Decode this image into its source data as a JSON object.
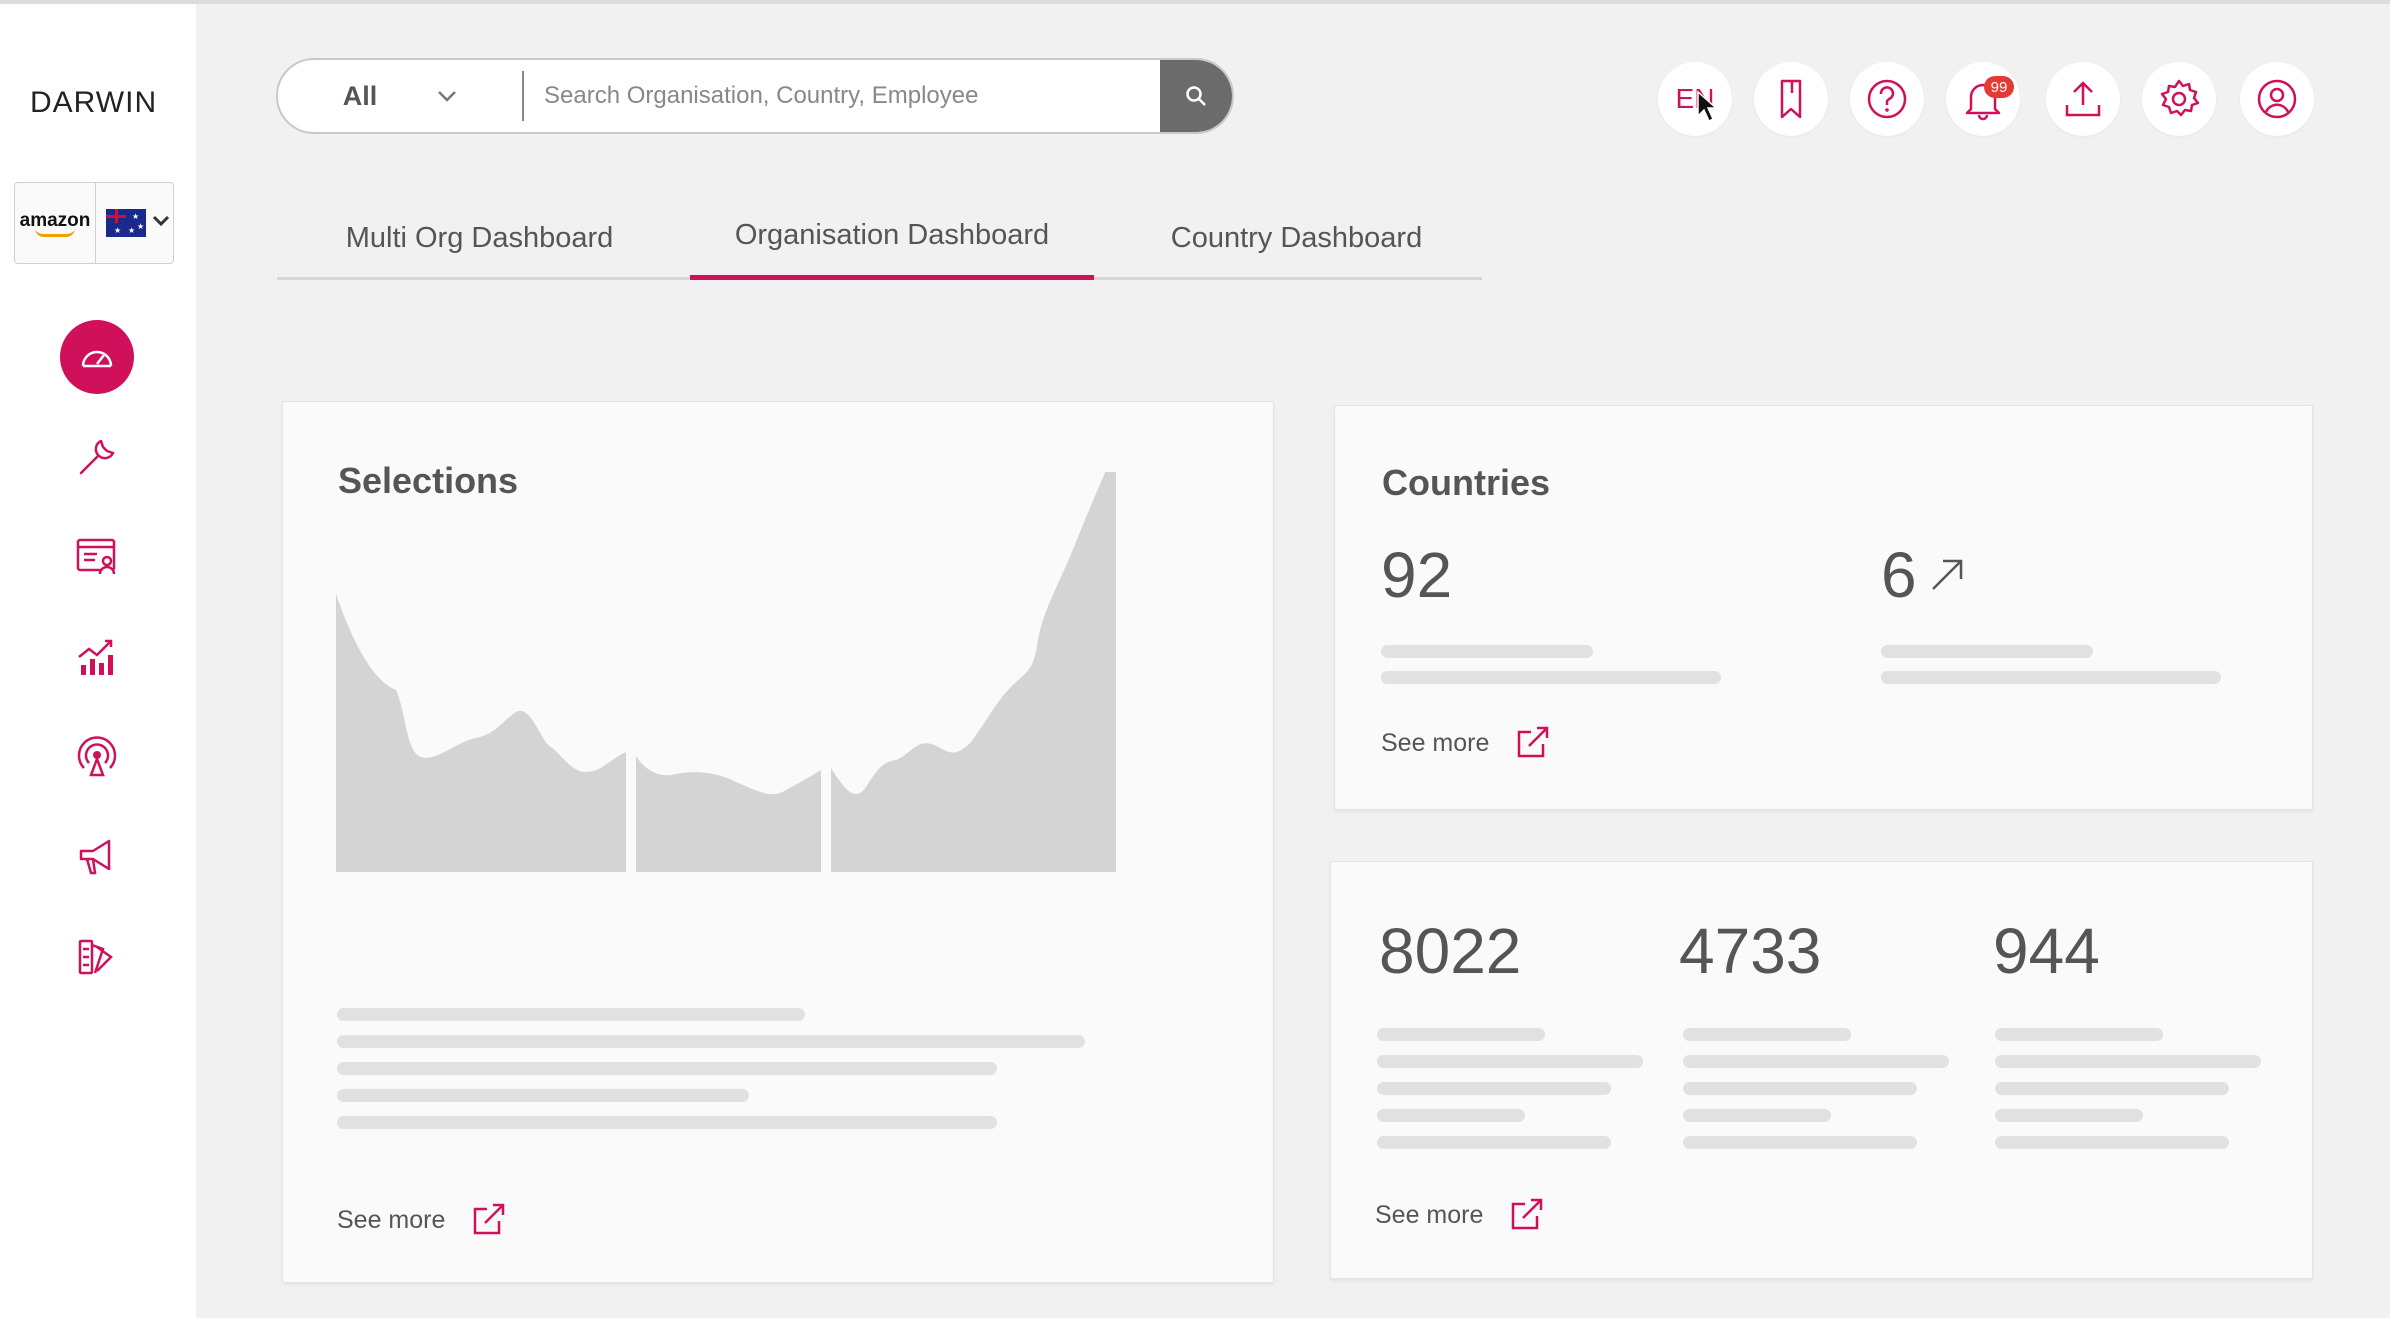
{
  "app": {
    "logo_text": "DARWIN"
  },
  "org_switcher": {
    "org_name": "amazon",
    "country": "Australia"
  },
  "sidebar": {
    "items": [
      {
        "name": "dashboard",
        "icon": "gauge-icon",
        "active": true
      },
      {
        "name": "tools",
        "icon": "wrench-icon"
      },
      {
        "name": "directory",
        "icon": "id-card-icon"
      },
      {
        "name": "analytics",
        "icon": "chart-icon"
      },
      {
        "name": "broadcast",
        "icon": "broadcast-icon"
      },
      {
        "name": "announcements",
        "icon": "megaphone-icon"
      },
      {
        "name": "palette",
        "icon": "swatches-icon"
      }
    ]
  },
  "search": {
    "scope": "All",
    "placeholder": "Search Organisation, Country, Employee",
    "value": ""
  },
  "header": {
    "language": "EN",
    "notifications_count": "99",
    "icons": [
      "language-icon",
      "bookmark-icon",
      "help-icon",
      "bell-icon",
      "upload-icon",
      "gear-icon",
      "user-icon"
    ]
  },
  "tabs": [
    {
      "label": "Multi Org Dashboard",
      "active": false
    },
    {
      "label": "Organisation Dashboard",
      "active": true
    },
    {
      "label": "Country Dashboard",
      "active": false
    }
  ],
  "cards": {
    "selections": {
      "title": "Selections",
      "see_more": "See more"
    },
    "countries": {
      "title": "Countries",
      "value_left": "92",
      "value_right": "6",
      "see_more": "See more"
    },
    "stats": {
      "values": [
        "8022",
        "4733",
        "944"
      ],
      "see_more": "See more"
    }
  },
  "colors": {
    "accent": "#d0105a",
    "background": "#f1f1f1",
    "chart_fill": "#d4d4d4"
  }
}
